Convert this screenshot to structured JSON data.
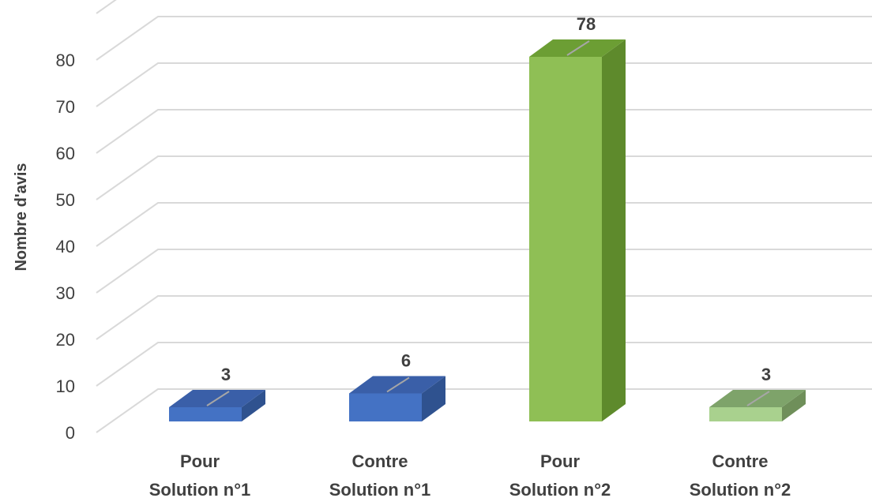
{
  "chart_data": {
    "type": "bar",
    "variant": "3d-column",
    "title": "",
    "xlabel": "",
    "ylabel": "Nombre d'avis",
    "ylim": [
      0,
      80
    ],
    "yticks": [
      0,
      10,
      20,
      30,
      40,
      50,
      60,
      70,
      80
    ],
    "grid": true,
    "legend": "none",
    "categories": [
      [
        "Pour",
        "Solution n°1"
      ],
      [
        "Contre",
        "Solution n°1"
      ],
      [
        "Pour",
        "Solution n°2"
      ],
      [
        "Contre",
        "Solution n°2"
      ]
    ],
    "values": [
      3,
      6,
      78,
      3
    ],
    "colors": [
      {
        "front": "#4472c4",
        "side": "#2f528f",
        "top": "#3a5fa8"
      },
      {
        "front": "#4472c4",
        "side": "#2f528f",
        "top": "#3a5fa8"
      },
      {
        "front": "#8fbf55",
        "side": "#5e8a2c",
        "top": "#6c9e34"
      },
      {
        "front": "#a9d18e",
        "side": "#6f8f5a",
        "top": "#7ea36a"
      }
    ]
  }
}
